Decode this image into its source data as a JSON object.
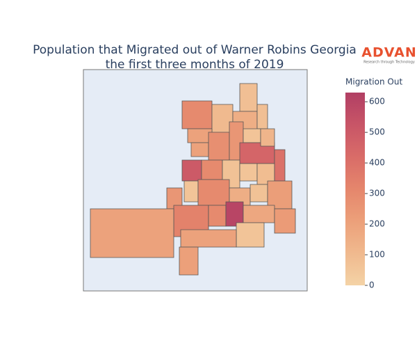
{
  "chart_data": {
    "type": "choropleth",
    "title": [
      "Population that Migrated out of Warner Robins Georgia",
      "the first three months of 2019"
    ],
    "logo": {
      "name": "ADVAN",
      "tagline": "Research through Technology",
      "color": "#e8512f"
    },
    "values": [
      300,
      100,
      80,
      150,
      80,
      200,
      200,
      280,
      250,
      60,
      450,
      120,
      500,
      300,
      70,
      60,
      90,
      400,
      60,
      300,
      150,
      70,
      220,
      250,
      330,
      300,
      600,
      180,
      230,
      60,
      200,
      200,
      210
    ],
    "colorbar": {
      "title": "Migration Out",
      "clim": [
        0,
        630
      ],
      "ticks": [
        0,
        100,
        200,
        300,
        400,
        500,
        600
      ],
      "colorscale": [
        "#f4d3a6",
        "#f0b98e",
        "#eca07a",
        "#e5866c",
        "#d96c68",
        "#c85567",
        "#b13f64"
      ]
    },
    "background": "#e5ecf6"
  }
}
